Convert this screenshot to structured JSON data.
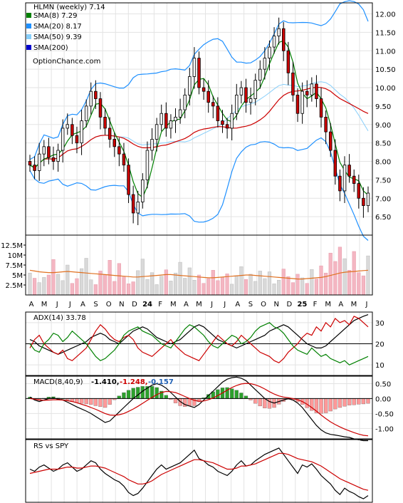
{
  "chart_data": [
    {
      "type": "line",
      "panel": "price",
      "title": "HLMN (weekly) 7.14",
      "watermark": "OptionChance.com",
      "legend": [
        {
          "label": "SMA(8) 7.29",
          "color": "#008000"
        },
        {
          "label": "SMA(20) 8.17",
          "color": "#1e90ff"
        },
        {
          "label": "SMA(50) 9.39",
          "color": "#87cefa"
        },
        {
          "label": "SMA(200)",
          "color": "#0000cc"
        }
      ],
      "legend_position": "top-left",
      "ylim": [
        6.0,
        12.3
      ],
      "yticks": [
        "12.00",
        "11.50",
        "11.00",
        "10.50",
        "10.00",
        "9.50",
        "9.00",
        "8.50",
        "8.00",
        "7.50",
        "7.00",
        "6.50"
      ],
      "grid": true,
      "colors": {
        "up": "#f5f5f5",
        "down": "#cc0000",
        "candle_outline": "#000000",
        "bollinger": "#1e90ff",
        "sma8": "#008000",
        "sma50": "#cc0000"
      },
      "close": [
        7.9,
        7.75,
        8.2,
        8.4,
        8.1,
        8.0,
        8.3,
        8.9,
        9.0,
        8.7,
        8.5,
        9.1,
        9.5,
        9.9,
        9.7,
        9.2,
        8.9,
        8.6,
        8.4,
        8.2,
        7.9,
        7.1,
        6.6,
        6.9,
        7.5,
        8.3,
        8.6,
        9.0,
        9.3,
        8.9,
        9.1,
        9.2,
        9.4,
        9.8,
        10.3,
        10.8,
        10.0,
        9.9,
        9.6,
        9.5,
        9.1,
        9.0,
        8.9,
        9.3,
        9.8,
        10.0,
        9.6,
        9.7,
        10.2,
        10.5,
        10.8,
        11.1,
        11.4,
        11.6,
        11.0,
        10.4,
        9.8,
        9.3,
        9.9,
        9.8,
        10.1,
        9.7,
        9.2,
        8.8,
        8.3,
        7.6,
        7.2,
        7.9,
        7.6,
        7.4,
        7.0,
        6.8,
        7.14
      ]
    },
    {
      "type": "bar",
      "panel": "volume",
      "yticks": [
        "12.5M",
        "10M",
        "7.5M",
        "5M",
        "2.5M"
      ],
      "ylim": [
        0,
        15
      ],
      "x_ticks": [
        "A",
        "M",
        "J",
        "J",
        "A",
        "S",
        "O",
        "N",
        "D",
        "24",
        "F",
        "M",
        "A",
        "M",
        "J",
        "J",
        "A",
        "S",
        "O",
        "N",
        "D",
        "25",
        "F",
        "M",
        "A",
        "M",
        "J"
      ],
      "values_m": [
        5.5,
        4.2,
        3.1,
        4.4,
        5.0,
        8.9,
        5.2,
        3.6,
        7.5,
        2.9,
        4.1,
        6.6,
        9.2,
        3.8,
        2.6,
        6.0,
        5.1,
        8.7,
        3.4,
        7.9,
        4.5,
        2.8,
        3.3,
        6.1,
        9.0,
        3.9,
        5.6,
        2.6,
        4.7,
        6.3,
        3.5,
        5.5,
        8.2,
        4.2,
        6.8,
        3.7,
        5.0,
        2.9,
        4.1,
        6.2,
        3.6,
        4.4,
        5.3,
        2.7,
        4.8,
        7.1,
        3.9,
        5.2,
        3.4,
        6.0,
        4.1,
        5.8,
        2.8,
        3.7,
        6.5,
        4.6,
        3.1,
        5.2,
        4.3,
        2.9,
        6.4,
        4.0,
        7.3,
        5.5,
        10.5,
        8.4,
        12.0,
        9.1,
        6.2,
        10.9,
        5.6,
        4.8,
        9.8
      ],
      "avg_color": "#e07020",
      "avg_m": [
        6.2,
        6.0,
        5.8,
        5.7,
        5.6,
        5.6,
        5.7,
        5.8,
        5.9,
        5.8,
        5.7,
        5.6,
        5.5,
        5.4,
        5.3,
        5.2,
        5.1,
        5.0,
        4.9,
        4.8,
        4.7,
        4.6,
        4.5,
        4.5,
        4.6,
        4.7,
        4.8,
        4.9,
        5.0,
        5.1,
        5.1,
        5.0,
        4.9,
        4.8,
        4.7,
        4.6,
        4.5,
        4.4,
        4.3,
        4.3,
        4.4,
        4.5,
        4.6,
        4.7,
        4.8,
        4.9,
        5.0,
        5.0,
        4.9,
        4.8,
        4.7,
        4.6,
        4.5,
        4.4,
        4.3,
        4.2,
        4.1,
        4.0,
        4.0,
        4.1,
        4.2,
        4.3,
        4.4,
        4.6,
        4.9,
        5.2,
        5.5,
        5.7,
        5.8,
        5.9,
        6.0,
        6.1,
        6.2
      ]
    },
    {
      "type": "line",
      "panel": "adx",
      "label": "ADX(14) 33.78",
      "ylim": [
        5,
        35
      ],
      "yticks": [
        "30",
        "20",
        "10"
      ],
      "reference_line": 20,
      "series": [
        {
          "values": [
            22,
            21,
            19,
            18,
            17,
            16,
            15,
            16,
            17,
            18,
            19,
            20,
            21,
            23,
            24,
            25,
            24,
            22,
            21,
            20,
            22,
            24,
            26,
            27,
            28,
            27,
            25,
            23,
            22,
            21,
            20,
            21,
            22,
            24,
            26,
            28,
            29,
            28,
            26,
            24,
            22,
            21,
            20,
            19,
            18,
            19,
            20,
            21,
            22,
            23,
            24,
            26,
            27,
            28,
            29,
            28,
            26,
            24,
            22,
            20,
            19,
            18,
            18,
            19,
            21,
            23,
            25,
            27,
            29,
            31,
            32,
            33,
            33.78
          ]
        },
        {
          "values": [
            18,
            22,
            24,
            20,
            18,
            16,
            15,
            17,
            13,
            12,
            14,
            16,
            18,
            22,
            26,
            29,
            27,
            24,
            22,
            21,
            23,
            24,
            22,
            18,
            16,
            15,
            14,
            16,
            18,
            20,
            22,
            19,
            17,
            15,
            14,
            13,
            12,
            15,
            18,
            21,
            24,
            22,
            20,
            19,
            21,
            24,
            22,
            20,
            18,
            16,
            15,
            14,
            12,
            11,
            13,
            16,
            18,
            20,
            23,
            25,
            24,
            28,
            26,
            30,
            28,
            32,
            30,
            31,
            29,
            33,
            32,
            30,
            28
          ]
        },
        {
          "values": [
            20,
            17,
            16,
            20,
            22,
            25,
            24,
            21,
            23,
            26,
            24,
            22,
            20,
            17,
            14,
            12,
            13,
            15,
            17,
            20,
            24,
            26,
            27,
            28,
            26,
            25,
            24,
            22,
            20,
            19,
            18,
            21,
            24,
            27,
            29,
            28,
            26,
            24,
            21,
            19,
            18,
            20,
            22,
            24,
            23,
            20,
            21,
            23,
            26,
            28,
            29,
            30,
            28,
            27,
            25,
            22,
            19,
            17,
            16,
            15,
            18,
            16,
            14,
            15,
            13,
            12,
            11,
            12,
            10,
            11,
            12,
            13,
            14
          ]
        }
      ],
      "series_colors": [
        "#000000",
        "#cc0000",
        "#008000"
      ]
    },
    {
      "type": "line",
      "panel": "macd",
      "label": "MACD(8,40,9)",
      "label_values": [
        "-1.410,",
        "-1.248,",
        "-0.157"
      ],
      "label_colors": [
        "#000000",
        "#cc0000",
        "#1e5fb4"
      ],
      "ylim": [
        -1.35,
        0.75
      ],
      "yticks": [
        "0.50",
        "0.00",
        "-0.50",
        "-1.00"
      ],
      "series": [
        {
          "values": [
            0.05,
            -0.05,
            -0.1,
            -0.05,
            0.0,
            0.02,
            -0.02,
            -0.05,
            -0.12,
            -0.2,
            -0.28,
            -0.35,
            -0.42,
            -0.5,
            -0.6,
            -0.7,
            -0.8,
            -0.75,
            -0.6,
            -0.45,
            -0.3,
            -0.15,
            0.0,
            0.12,
            0.25,
            0.35,
            0.45,
            0.5,
            0.45,
            0.35,
            0.2,
            0.05,
            -0.1,
            -0.2,
            -0.25,
            -0.3,
            -0.2,
            -0.05,
            0.1,
            0.25,
            0.4,
            0.55,
            0.65,
            0.7,
            0.72,
            0.68,
            0.6,
            0.45,
            0.3,
            0.15,
            0.0,
            -0.1,
            -0.15,
            -0.1,
            -0.05,
            0.0,
            -0.05,
            -0.15,
            -0.3,
            -0.5,
            -0.7,
            -0.9,
            -1.05,
            -1.15,
            -1.2,
            -1.22,
            -1.25,
            -1.28,
            -1.3,
            -1.35,
            -1.38,
            -1.41,
            -1.41
          ]
        },
        {
          "values": [
            0.0,
            -0.02,
            -0.05,
            -0.06,
            -0.05,
            -0.04,
            -0.04,
            -0.05,
            -0.07,
            -0.1,
            -0.14,
            -0.19,
            -0.24,
            -0.3,
            -0.36,
            -0.43,
            -0.5,
            -0.55,
            -0.56,
            -0.54,
            -0.5,
            -0.43,
            -0.35,
            -0.26,
            -0.16,
            -0.06,
            0.04,
            0.13,
            0.2,
            0.24,
            0.23,
            0.2,
            0.14,
            0.07,
            0.0,
            -0.06,
            -0.09,
            -0.08,
            -0.04,
            0.02,
            0.1,
            0.19,
            0.28,
            0.37,
            0.44,
            0.49,
            0.51,
            0.5,
            0.46,
            0.4,
            0.32,
            0.23,
            0.15,
            0.09,
            0.05,
            0.03,
            0.0,
            -0.04,
            -0.1,
            -0.19,
            -0.3,
            -0.42,
            -0.55,
            -0.67,
            -0.78,
            -0.87,
            -0.95,
            -1.02,
            -1.08,
            -1.14,
            -1.19,
            -1.23,
            -1.248
          ]
        }
      ],
      "series_colors": [
        "#000000",
        "#cc0000"
      ],
      "histogram_colors": {
        "positive": "#2ca02c",
        "negative": "#ff9999"
      }
    },
    {
      "type": "line",
      "panel": "rs",
      "label": "RS vs SPY",
      "series": [
        {
          "values": [
            0.62,
            0.6,
            0.64,
            0.66,
            0.63,
            0.6,
            0.62,
            0.66,
            0.68,
            0.64,
            0.6,
            0.62,
            0.66,
            0.7,
            0.68,
            0.62,
            0.58,
            0.55,
            0.52,
            0.5,
            0.46,
            0.4,
            0.37,
            0.39,
            0.44,
            0.5,
            0.56,
            0.62,
            0.66,
            0.62,
            0.64,
            0.66,
            0.68,
            0.72,
            0.76,
            0.8,
            0.72,
            0.7,
            0.66,
            0.64,
            0.6,
            0.58,
            0.56,
            0.6,
            0.66,
            0.7,
            0.65,
            0.66,
            0.7,
            0.73,
            0.76,
            0.78,
            0.8,
            0.82,
            0.76,
            0.7,
            0.64,
            0.58,
            0.66,
            0.64,
            0.67,
            0.62,
            0.56,
            0.52,
            0.48,
            0.42,
            0.38,
            0.44,
            0.41,
            0.39,
            0.36,
            0.34,
            0.37
          ]
        },
        {
          "values": [
            0.58,
            0.59,
            0.6,
            0.61,
            0.62,
            0.62,
            0.62,
            0.63,
            0.64,
            0.64,
            0.63,
            0.63,
            0.64,
            0.65,
            0.65,
            0.64,
            0.63,
            0.61,
            0.59,
            0.57,
            0.55,
            0.52,
            0.5,
            0.48,
            0.48,
            0.49,
            0.51,
            0.54,
            0.57,
            0.59,
            0.61,
            0.63,
            0.65,
            0.67,
            0.69,
            0.71,
            0.71,
            0.7,
            0.69,
            0.68,
            0.66,
            0.64,
            0.62,
            0.62,
            0.63,
            0.65,
            0.65,
            0.66,
            0.67,
            0.69,
            0.71,
            0.73,
            0.75,
            0.77,
            0.77,
            0.76,
            0.74,
            0.72,
            0.71,
            0.7,
            0.69,
            0.67,
            0.65,
            0.62,
            0.59,
            0.56,
            0.53,
            0.51,
            0.49,
            0.47,
            0.45,
            0.43,
            0.42
          ]
        }
      ],
      "series_colors": [
        "#000000",
        "#cc0000"
      ],
      "ylim": [
        0.3,
        0.9
      ]
    }
  ]
}
